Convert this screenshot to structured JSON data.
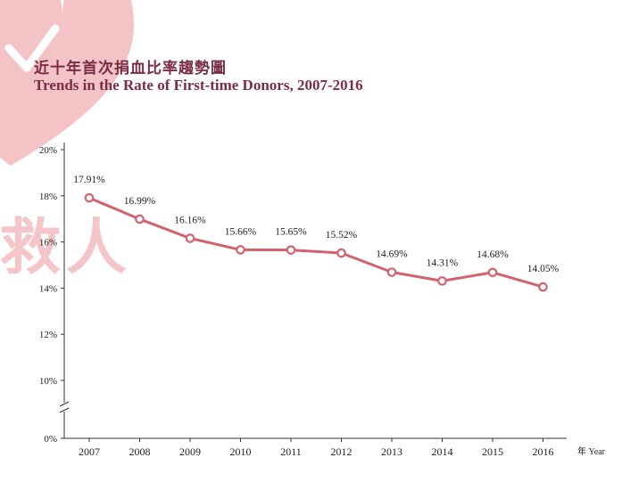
{
  "title_zh": "近十年首次捐血比率趨勢圖",
  "title_en": "Trends in the Rate of First-time Donors, 2007-2016",
  "watermark_text": "救人",
  "colors": {
    "line": "#d4626e",
    "title": "#7a2c46",
    "heart": "#f4c3c6"
  },
  "chart_data": {
    "type": "line",
    "x": [
      "2007",
      "2008",
      "2009",
      "2010",
      "2011",
      "2012",
      "2013",
      "2014",
      "2015",
      "2016"
    ],
    "values": [
      17.91,
      16.99,
      16.16,
      15.66,
      15.65,
      15.52,
      14.69,
      14.31,
      14.68,
      14.05
    ],
    "value_labels": [
      "17.91%",
      "16.99%",
      "16.16%",
      "15.66%",
      "15.65%",
      "15.52%",
      "14.69%",
      "14.31%",
      "14.68%",
      "14.05%"
    ],
    "y_ticks": [
      "0%",
      "10%",
      "12%",
      "14%",
      "16%",
      "18%",
      "20%"
    ],
    "y_tick_values": [
      0,
      10,
      12,
      14,
      16,
      18,
      20
    ],
    "ylim": [
      10,
      20
    ],
    "axis_break": true,
    "xlabel": "年 Year",
    "ylabel": ""
  }
}
